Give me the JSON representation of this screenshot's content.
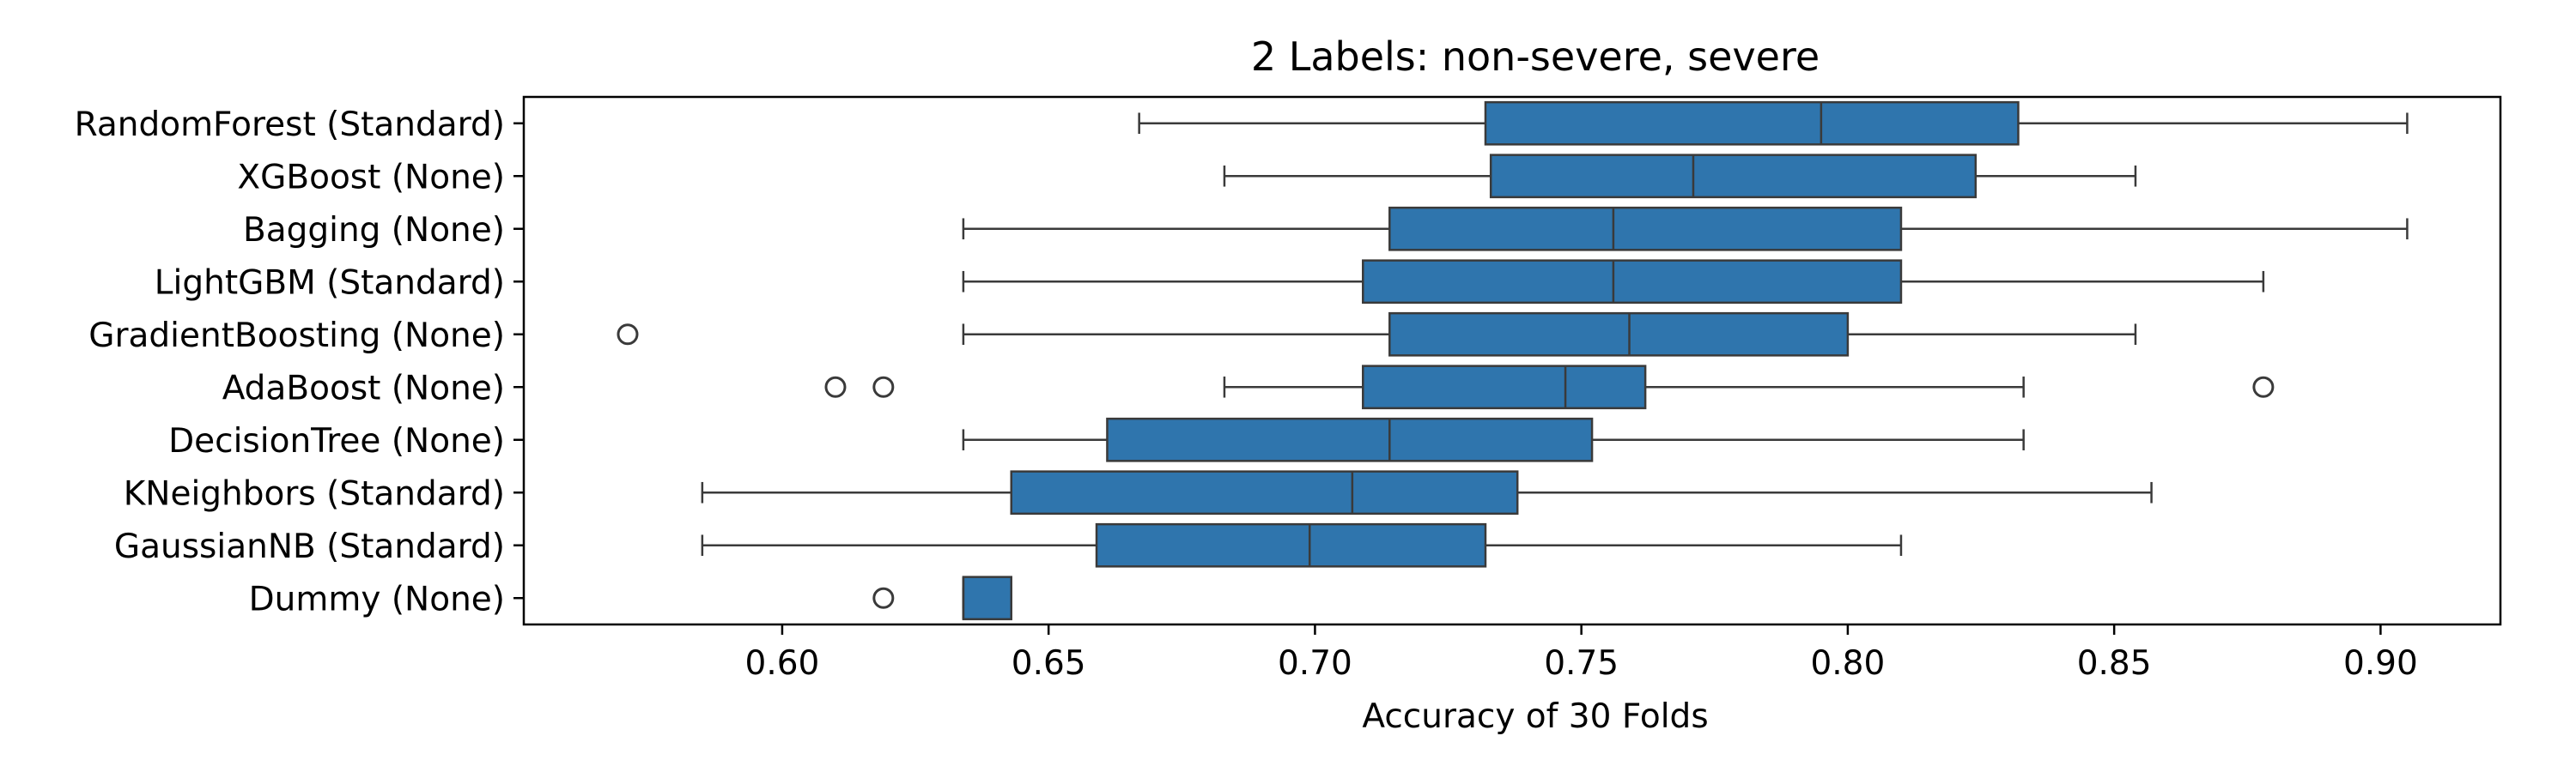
{
  "chart_data": {
    "type": "boxplot",
    "orientation": "horizontal",
    "title": "2 Labels: non-severe, severe",
    "xlabel": "Accuracy of 30 Folds",
    "ylabel": "",
    "xlim": [
      0.5515,
      0.9225
    ],
    "xticks": [
      0.6,
      0.65,
      0.7,
      0.75,
      0.8,
      0.85,
      0.9
    ],
    "xtick_labels": [
      "0.60",
      "0.65",
      "0.70",
      "0.75",
      "0.80",
      "0.85",
      "0.90"
    ],
    "grid": false,
    "box_color": "#2f75ad",
    "line_color": "#3a3a3a",
    "categories": [
      "RandomForest (Standard)",
      "XGBoost (None)",
      "Bagging (None)",
      "LightGBM (Standard)",
      "GradientBoosting (None)",
      "AdaBoost (None)",
      "DecisionTree (None)",
      "KNeighbors (Standard)",
      "GaussianNB (Standard)",
      "Dummy (None)"
    ],
    "boxes": [
      {
        "whislo": 0.667,
        "q1": 0.732,
        "med": 0.795,
        "q3": 0.832,
        "whishi": 0.905,
        "fliers": []
      },
      {
        "whislo": 0.683,
        "q1": 0.733,
        "med": 0.771,
        "q3": 0.824,
        "whishi": 0.854,
        "fliers": []
      },
      {
        "whislo": 0.634,
        "q1": 0.714,
        "med": 0.756,
        "q3": 0.81,
        "whishi": 0.905,
        "fliers": []
      },
      {
        "whislo": 0.634,
        "q1": 0.709,
        "med": 0.756,
        "q3": 0.81,
        "whishi": 0.878,
        "fliers": []
      },
      {
        "whislo": 0.634,
        "q1": 0.714,
        "med": 0.759,
        "q3": 0.8,
        "whishi": 0.854,
        "fliers": [
          0.571
        ]
      },
      {
        "whislo": 0.683,
        "q1": 0.709,
        "med": 0.747,
        "q3": 0.762,
        "whishi": 0.833,
        "fliers": [
          0.61,
          0.619,
          0.878
        ]
      },
      {
        "whislo": 0.634,
        "q1": 0.661,
        "med": 0.714,
        "q3": 0.752,
        "whishi": 0.833,
        "fliers": []
      },
      {
        "whislo": 0.585,
        "q1": 0.643,
        "med": 0.707,
        "q3": 0.738,
        "whishi": 0.857,
        "fliers": []
      },
      {
        "whislo": 0.585,
        "q1": 0.659,
        "med": 0.699,
        "q3": 0.732,
        "whishi": 0.81,
        "fliers": []
      },
      {
        "whislo": 0.634,
        "q1": 0.634,
        "med": 0.634,
        "q3": 0.643,
        "whishi": 0.643,
        "fliers": [
          0.619
        ]
      }
    ]
  }
}
